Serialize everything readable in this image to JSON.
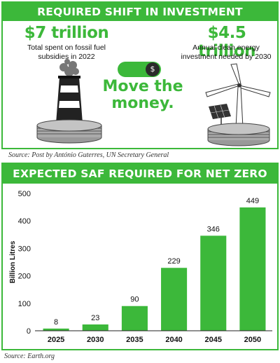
{
  "investment": {
    "header": "REQUIRED SHIFT IN INVESTMENT",
    "left_amount": "$7 trillion",
    "left_caption_line1": "Total spent on fossil fuel",
    "left_caption_line2": "subsidies in 2022",
    "right_amount": "$4.5 trillion",
    "right_caption_line1": "Annual clean energy",
    "right_caption_line2": "investment needed by 2030",
    "toggle_symbol": "$",
    "slogan_line1": "Move the",
    "slogan_line2": "money.",
    "source": "Source: Post by António Guterres, UN Secretary General",
    "icons": [
      "smokestack-icon",
      "dollar-toggle-icon",
      "wind-turbine-icon",
      "solar-panel-icon"
    ]
  },
  "saf": {
    "header": "EXPECTED SAF REQUIRED FOR NET ZERO 2050",
    "source": "Source: Earth.org"
  },
  "chart_data": {
    "type": "bar",
    "title": "EXPECTED SAF REQUIRED FOR NET ZERO 2050",
    "xlabel": "",
    "ylabel": "Billion Litres",
    "categories": [
      "2025",
      "2030",
      "2035",
      "2040",
      "2045",
      "2050"
    ],
    "values": [
      8,
      23,
      90,
      229,
      346,
      449
    ],
    "data_labels": [
      "8",
      "23",
      "90",
      "229",
      "346",
      "449"
    ],
    "ylim": [
      0,
      500
    ],
    "yticks": [
      "0",
      "100",
      "200",
      "300",
      "400",
      "500"
    ],
    "grid": false,
    "legend": "none",
    "bar_color": "#3cb83a"
  },
  "colors": {
    "accent": "#3cb83a",
    "header_text": "#ffffff"
  }
}
